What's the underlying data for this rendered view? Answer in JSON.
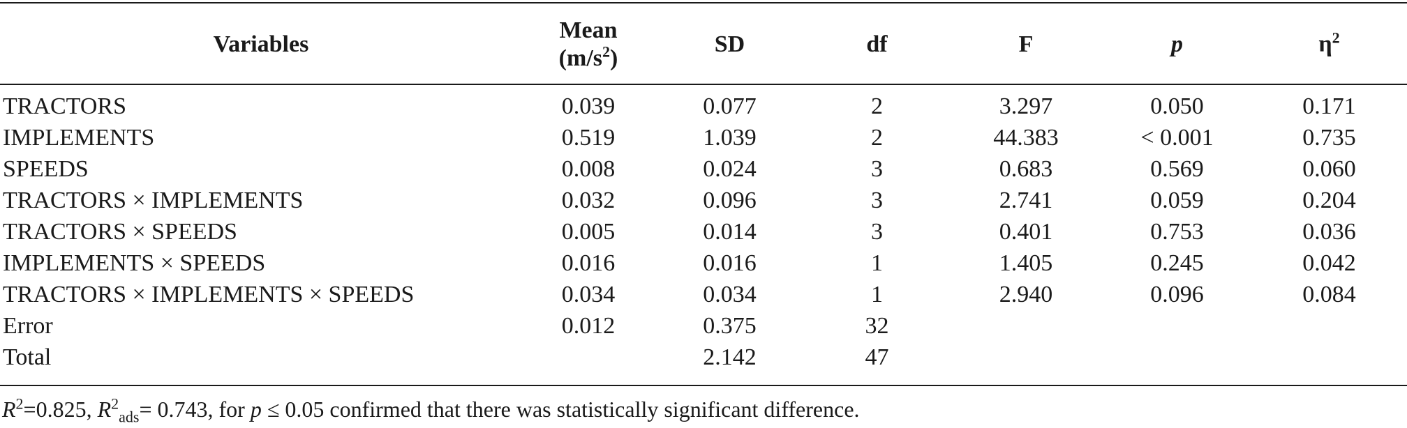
{
  "headers": {
    "variables": "Variables",
    "mean_line1": "Mean",
    "mean_line2_pre": "(m/s",
    "mean_line2_sup": "2",
    "mean_line2_post": ")",
    "sd": "SD",
    "df": "df",
    "f": "F",
    "p": "p",
    "eta": "η",
    "eta_sup": "2"
  },
  "rows": [
    {
      "variable": "TRACTORS",
      "mean": "0.039",
      "sd": "0.077",
      "df": "2",
      "f": "3.297",
      "p": "0.050",
      "eta2": "0.171"
    },
    {
      "variable": "IMPLEMENTS",
      "mean": "0.519",
      "sd": "1.039",
      "df": "2",
      "f": "44.383",
      "p": "< 0.001",
      "eta2": "0.735"
    },
    {
      "variable": "SPEEDS",
      "mean": "0.008",
      "sd": "0.024",
      "df": "3",
      "f": "0.683",
      "p": "0.569",
      "eta2": "0.060"
    },
    {
      "variable": "TRACTORS × IMPLEMENTS",
      "mean": "0.032",
      "sd": "0.096",
      "df": "3",
      "f": "2.741",
      "p": "0.059",
      "eta2": "0.204"
    },
    {
      "variable": "TRACTORS × SPEEDS",
      "mean": "0.005",
      "sd": "0.014",
      "df": "3",
      "f": "0.401",
      "p": "0.753",
      "eta2": "0.036"
    },
    {
      "variable": "IMPLEMENTS × SPEEDS",
      "mean": "0.016",
      "sd": "0.016",
      "df": "1",
      "f": "1.405",
      "p": "0.245",
      "eta2": "0.042"
    },
    {
      "variable": "TRACTORS × IMPLEMENTS × SPEEDS",
      "mean": "0.034",
      "sd": "0.034",
      "df": "1",
      "f": "2.940",
      "p": "0.096",
      "eta2": "0.084"
    },
    {
      "variable": "Error",
      "mean": "0.012",
      "sd": "0.375",
      "df": "32",
      "f": "",
      "p": "",
      "eta2": ""
    },
    {
      "variable": "Total",
      "mean": "",
      "sd": "2.142",
      "df": "47",
      "f": "",
      "p": "",
      "eta2": ""
    }
  ],
  "footnote": {
    "r": "R",
    "r_sup": "2",
    "r_val": "=0.825, ",
    "r2": "R",
    "r2_sup": "2",
    "r2_sub": "ads",
    "r2_val": "= 0.743, for ",
    "p": "p",
    "rest": " ≤ 0.05 confirmed that there was statistically significant difference."
  }
}
